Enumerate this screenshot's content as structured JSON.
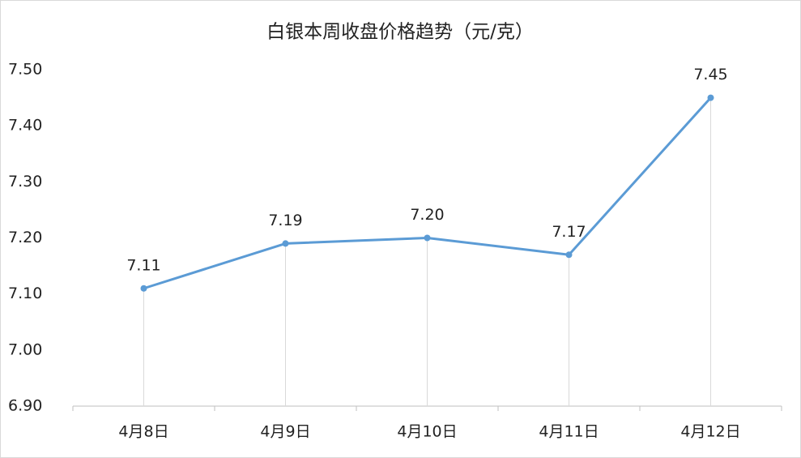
{
  "chart_data": {
    "type": "line",
    "title": "白银本周收盘价格趋势（元/克）",
    "categories": [
      "4月8日",
      "4月9日",
      "4月10日",
      "4月11日",
      "4月12日"
    ],
    "series": [
      {
        "name": "收盘价格",
        "color": "#5b9bd5",
        "values": [
          7.11,
          7.19,
          7.2,
          7.17,
          7.45
        ],
        "value_labels": [
          "7.11",
          "7.19",
          "7.20",
          "7.17",
          "7.45"
        ]
      }
    ],
    "ylim": [
      6.9,
      7.5
    ],
    "yticks": [
      {
        "value": 6.9,
        "label": "6.90"
      },
      {
        "value": 7.0,
        "label": "7.00"
      },
      {
        "value": 7.1,
        "label": "7.10"
      },
      {
        "value": 7.2,
        "label": "7.20"
      },
      {
        "value": 7.3,
        "label": "7.30"
      },
      {
        "value": 7.4,
        "label": "7.40"
      },
      {
        "value": 7.5,
        "label": "7.50"
      }
    ],
    "drop_lines": true,
    "grid": false
  }
}
